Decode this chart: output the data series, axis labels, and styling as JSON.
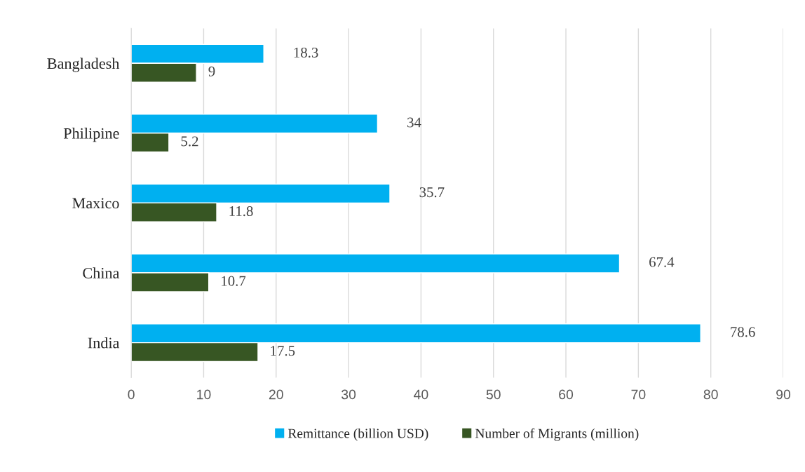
{
  "chart_data": {
    "type": "bar",
    "orientation": "horizontal",
    "categories": [
      "Bangladesh",
      "Philipine",
      "Maxico",
      "China",
      "India"
    ],
    "series": [
      {
        "name": "Remittance (billion USD)",
        "color": "#00b0f0",
        "values": [
          18.3,
          34,
          35.7,
          67.4,
          78.6
        ]
      },
      {
        "name": "Number of Migrants (million)",
        "color": "#375623",
        "values": [
          9,
          5.2,
          11.8,
          10.7,
          17.5
        ]
      }
    ],
    "xlim": [
      0,
      90
    ],
    "xticks": [
      0,
      10,
      20,
      30,
      40,
      50,
      60,
      70,
      80,
      90
    ],
    "grid": "x",
    "legend": "bottom",
    "data_labels": true
  }
}
